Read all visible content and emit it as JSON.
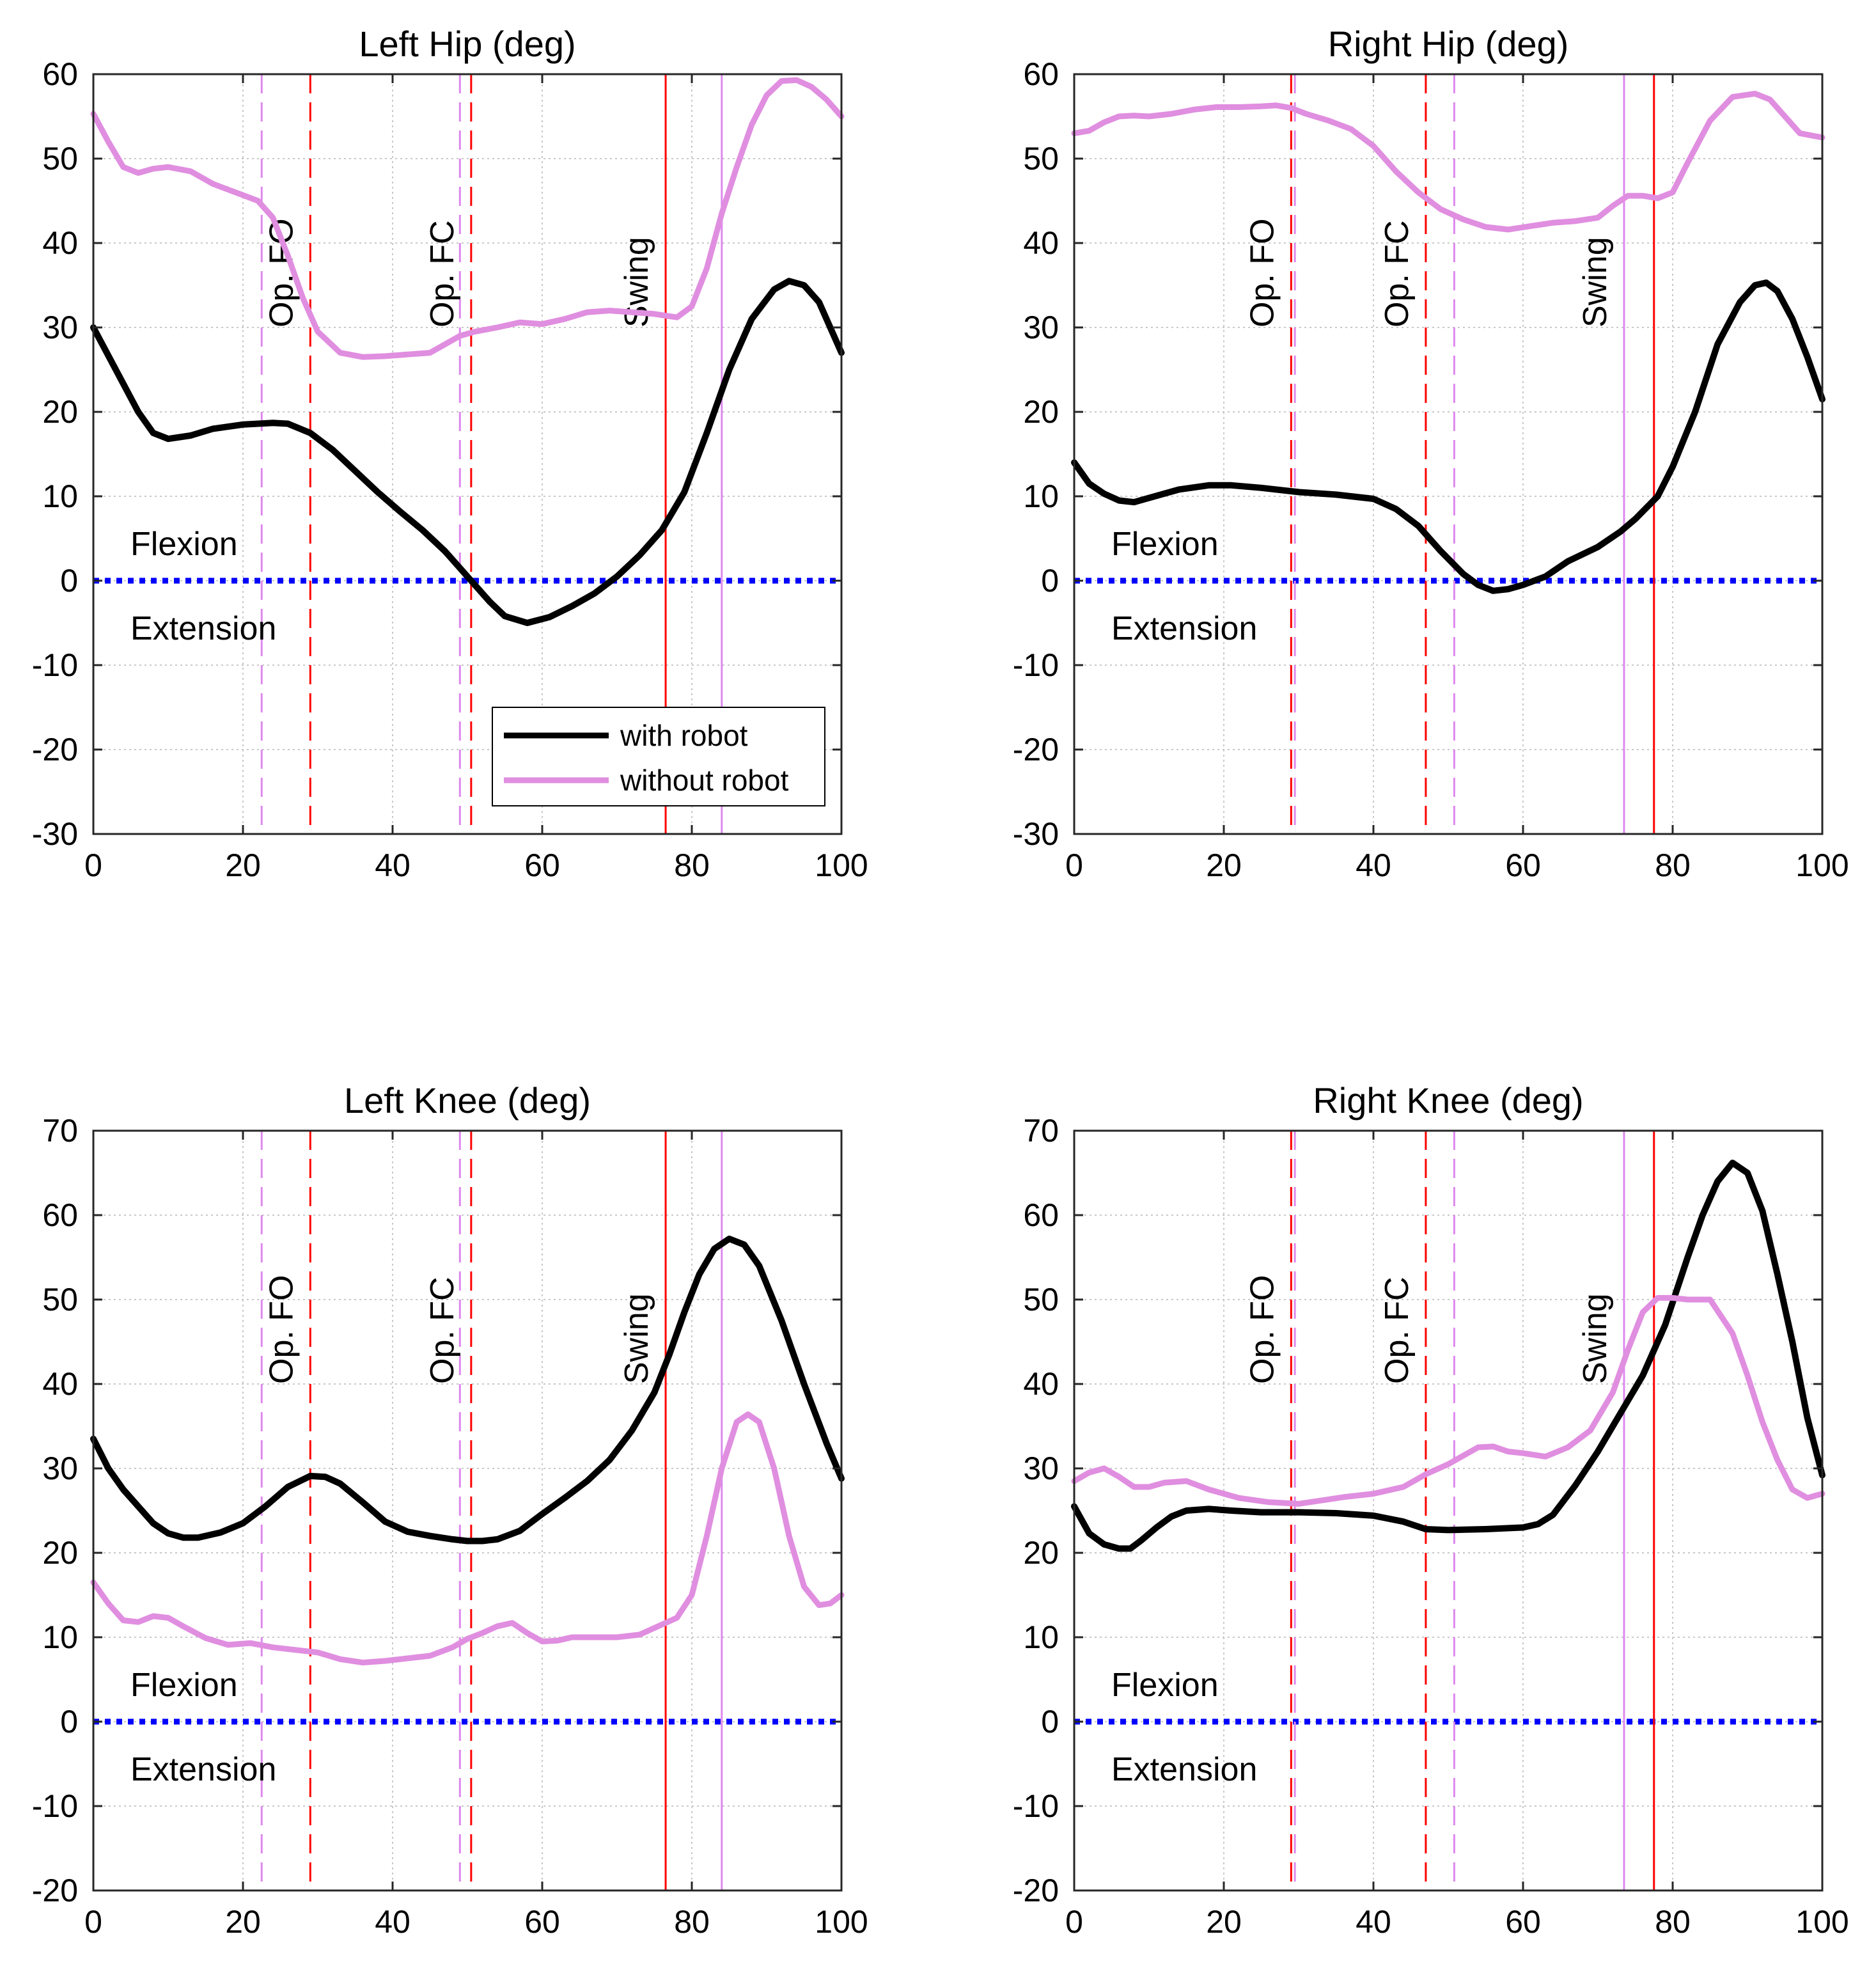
{
  "colors": {
    "with_robot": "#000000",
    "without_robot": "#e08ee0",
    "robot_event": "#ff0000",
    "no_robot_event": "#dd88ee",
    "zero_line": "#0000ff",
    "grid": "#c8c8c8"
  },
  "legend": {
    "with_robot": "with robot",
    "without_robot": "without robot"
  },
  "chart_data": [
    {
      "type": "line",
      "title": "Left Hip (deg)",
      "xlim": [
        0,
        100
      ],
      "ylim": [
        -30,
        60
      ],
      "xticks": [
        0,
        20,
        40,
        60,
        80,
        100
      ],
      "yticks": [
        -30,
        -20,
        -10,
        0,
        10,
        20,
        30,
        40,
        50,
        60
      ],
      "grid": true,
      "legend_location": "lower-right",
      "annotations": {
        "upper": "Flexion",
        "lower": "Extension"
      },
      "events": [
        {
          "label": "Op. FO",
          "x": 29,
          "style": "dashed",
          "series": "with robot",
          "labeled": true
        },
        {
          "label": "Op. FC",
          "x": 50.5,
          "style": "dashed",
          "series": "with robot",
          "labeled": true
        },
        {
          "label": "Swing",
          "x": 76.5,
          "style": "solid",
          "series": "with robot",
          "labeled": true
        },
        {
          "label": "",
          "x": 22.5,
          "style": "dashed",
          "series": "without robot",
          "labeled": false
        },
        {
          "label": "",
          "x": 49,
          "style": "dashed",
          "series": "without robot",
          "labeled": false
        },
        {
          "label": "",
          "x": 84,
          "style": "solid",
          "series": "without robot",
          "labeled": false
        }
      ],
      "series": [
        {
          "name": "with robot",
          "x": [
            0,
            3,
            6,
            8,
            10,
            13,
            16,
            20,
            24,
            26,
            29,
            32,
            35,
            38,
            41,
            44,
            47,
            50,
            53,
            55,
            58,
            61,
            64,
            67,
            70,
            73,
            76,
            79,
            82,
            85,
            88,
            91,
            93,
            95,
            97,
            100
          ],
          "y": [
            30,
            25,
            20,
            17.5,
            16.8,
            17.2,
            18,
            18.5,
            18.7,
            18.6,
            17.5,
            15.5,
            13,
            10.5,
            8.2,
            6,
            3.5,
            0.5,
            -2.5,
            -4.2,
            -5,
            -4.3,
            -3,
            -1.5,
            0.5,
            3,
            6,
            10.5,
            17.5,
            25,
            31,
            34.5,
            35.5,
            35,
            33,
            27
          ]
        },
        {
          "name": "without robot",
          "x": [
            0,
            2,
            4,
            6,
            8,
            10,
            13,
            16,
            19,
            22,
            24,
            26,
            28,
            30,
            33,
            36,
            39,
            42,
            45,
            47,
            49,
            51,
            54,
            57,
            60,
            63,
            66,
            69,
            72,
            75,
            78,
            80,
            82,
            84,
            86,
            88,
            90,
            92,
            94,
            96,
            98,
            100
          ],
          "y": [
            55.3,
            52,
            49,
            48.3,
            48.8,
            49,
            48.5,
            47,
            46,
            45,
            43,
            38.5,
            33.5,
            29.5,
            27,
            26.5,
            26.6,
            26.8,
            27,
            28,
            29,
            29.5,
            30,
            30.6,
            30.4,
            31,
            31.8,
            32,
            31.8,
            31.6,
            31.2,
            32.5,
            37,
            43.5,
            49,
            54,
            57.5,
            59.2,
            59.3,
            58.5,
            57,
            55
          ]
        }
      ]
    },
    {
      "type": "line",
      "title": "Right Hip (deg)",
      "xlim": [
        0,
        100
      ],
      "ylim": [
        -30,
        60
      ],
      "xticks": [
        0,
        20,
        40,
        60,
        80,
        100
      ],
      "yticks": [
        -30,
        -20,
        -10,
        0,
        10,
        20,
        30,
        40,
        50,
        60
      ],
      "grid": true,
      "annotations": {
        "upper": "Flexion",
        "lower": "Extension"
      },
      "events": [
        {
          "label": "Op. FO",
          "x": 29,
          "style": "dashed",
          "series": "with robot",
          "labeled": true
        },
        {
          "label": "Op. FC",
          "x": 47,
          "style": "dashed",
          "series": "with robot",
          "labeled": true
        },
        {
          "label": "Swing",
          "x": 77.5,
          "style": "solid",
          "series": "with robot",
          "labeled": false
        },
        {
          "label": "",
          "x": 29.5,
          "style": "dashed",
          "series": "without robot",
          "labeled": false
        },
        {
          "label": "",
          "x": 50.8,
          "style": "dashed",
          "series": "without robot",
          "labeled": false
        },
        {
          "label": "Swing",
          "x": 73.5,
          "style": "solid",
          "series": "without robot",
          "labeled": true
        }
      ],
      "series": [
        {
          "name": "with robot",
          "x": [
            0,
            2,
            4,
            6,
            8,
            10,
            14,
            18,
            21,
            25,
            30,
            35,
            40,
            43,
            46,
            49,
            52,
            54,
            56,
            58,
            60,
            63,
            66,
            70,
            73,
            75,
            78,
            80,
            83,
            86,
            89,
            91,
            92.5,
            94,
            96,
            98,
            100
          ],
          "y": [
            14,
            11.5,
            10.3,
            9.5,
            9.3,
            9.8,
            10.8,
            11.3,
            11.3,
            11,
            10.5,
            10.2,
            9.7,
            8.5,
            6.5,
            3.5,
            0.8,
            -0.5,
            -1.2,
            -1,
            -0.5,
            0.5,
            2.3,
            4,
            5.8,
            7.3,
            10,
            13.5,
            20,
            28,
            33,
            35,
            35.3,
            34.3,
            31,
            26.5,
            21.5
          ]
        },
        {
          "name": "without robot",
          "x": [
            0,
            2,
            4,
            6,
            8,
            10,
            13,
            16,
            19,
            22,
            25,
            27,
            29,
            31,
            34,
            37,
            40,
            43,
            46,
            49,
            52,
            55,
            58,
            61,
            64,
            67,
            70,
            72,
            74,
            76,
            78,
            80,
            82,
            85,
            88,
            91,
            93,
            95,
            97,
            100
          ],
          "y": [
            53,
            53.3,
            54.3,
            55,
            55.1,
            55,
            55.3,
            55.8,
            56.1,
            56.1,
            56.2,
            56.3,
            56,
            55.3,
            54.5,
            53.5,
            51.5,
            48.5,
            46,
            44,
            42.8,
            41.9,
            41.6,
            42,
            42.4,
            42.6,
            43,
            44.4,
            45.6,
            45.6,
            45.3,
            46,
            49.5,
            54.5,
            57.3,
            57.7,
            57,
            55,
            53,
            52.5
          ]
        }
      ]
    },
    {
      "type": "line",
      "title": "Left Knee (deg)",
      "xlim": [
        0,
        100
      ],
      "ylim": [
        -20,
        70
      ],
      "xticks": [
        0,
        20,
        40,
        60,
        80,
        100
      ],
      "yticks": [
        -20,
        -10,
        0,
        10,
        20,
        30,
        40,
        50,
        60,
        70
      ],
      "grid": true,
      "annotations": {
        "upper": "Flexion",
        "lower": "Extension"
      },
      "events": [
        {
          "label": "Op. FO",
          "x": 29,
          "style": "dashed",
          "series": "with robot",
          "labeled": true
        },
        {
          "label": "Op. FC",
          "x": 50.5,
          "style": "dashed",
          "series": "with robot",
          "labeled": true
        },
        {
          "label": "Swing",
          "x": 76.5,
          "style": "solid",
          "series": "with robot",
          "labeled": true
        },
        {
          "label": "",
          "x": 22.5,
          "style": "dashed",
          "series": "without robot",
          "labeled": false
        },
        {
          "label": "",
          "x": 49,
          "style": "dashed",
          "series": "without robot",
          "labeled": false
        },
        {
          "label": "",
          "x": 84,
          "style": "solid",
          "series": "without robot",
          "labeled": false
        }
      ],
      "series": [
        {
          "name": "with robot",
          "x": [
            0,
            2,
            4,
            6,
            8,
            10,
            12,
            14,
            17,
            20,
            23,
            26,
            29,
            31,
            33,
            36,
            39,
            42,
            45,
            48,
            50,
            52,
            54,
            57,
            60,
            63,
            66,
            69,
            72,
            75,
            77,
            79,
            81,
            83,
            85,
            87,
            89,
            92,
            95,
            98,
            100
          ],
          "y": [
            33.5,
            30,
            27.5,
            25.5,
            23.5,
            22.3,
            21.8,
            21.8,
            22.4,
            23.5,
            25.5,
            27.8,
            29.1,
            29,
            28.2,
            26,
            23.7,
            22.5,
            22,
            21.6,
            21.4,
            21.4,
            21.6,
            22.6,
            24.6,
            26.5,
            28.5,
            31,
            34.5,
            39,
            43.5,
            48.5,
            53,
            56,
            57.2,
            56.5,
            54,
            47.5,
            40,
            33,
            28.8
          ]
        },
        {
          "name": "without robot",
          "x": [
            0,
            2,
            4,
            6,
            8,
            10,
            12,
            15,
            18,
            21,
            24,
            27,
            30,
            33,
            36,
            39,
            42,
            45,
            48,
            50,
            52,
            54,
            56,
            58,
            60,
            62,
            64,
            67,
            70,
            73,
            76,
            78,
            80,
            82,
            84,
            86,
            87.5,
            89,
            91,
            93,
            95,
            97,
            98.5,
            100
          ],
          "y": [
            16.5,
            14,
            12,
            11.8,
            12.5,
            12.3,
            11.3,
            9.9,
            9.1,
            9.3,
            8.8,
            8.5,
            8.2,
            7.4,
            7,
            7.2,
            7.5,
            7.8,
            8.8,
            9.8,
            10.5,
            11.3,
            11.7,
            10.5,
            9.5,
            9.6,
            10,
            10,
            10,
            10.3,
            11.5,
            12.3,
            15,
            22,
            30,
            35.5,
            36.4,
            35.5,
            30,
            22,
            16,
            13.8,
            14,
            15
          ]
        }
      ]
    },
    {
      "type": "line",
      "title": "Right Knee (deg)",
      "xlim": [
        0,
        100
      ],
      "ylim": [
        -20,
        70
      ],
      "xticks": [
        0,
        20,
        40,
        60,
        80,
        100
      ],
      "yticks": [
        -20,
        -10,
        0,
        10,
        20,
        30,
        40,
        50,
        60,
        70
      ],
      "grid": true,
      "annotations": {
        "upper": "Flexion",
        "lower": "Extension"
      },
      "events": [
        {
          "label": "Op. FO",
          "x": 29,
          "style": "dashed",
          "series": "with robot",
          "labeled": true
        },
        {
          "label": "Op. FC",
          "x": 47,
          "style": "dashed",
          "series": "with robot",
          "labeled": true
        },
        {
          "label": "Swing",
          "x": 77.5,
          "style": "solid",
          "series": "with robot",
          "labeled": false
        },
        {
          "label": "",
          "x": 29.5,
          "style": "dashed",
          "series": "without robot",
          "labeled": false
        },
        {
          "label": "",
          "x": 50.8,
          "style": "dashed",
          "series": "without robot",
          "labeled": false
        },
        {
          "label": "Swing",
          "x": 73.5,
          "style": "solid",
          "series": "without robot",
          "labeled": true
        }
      ],
      "series": [
        {
          "name": "with robot",
          "x": [
            0,
            2,
            4,
            6,
            7.5,
            9,
            11,
            13,
            15,
            18,
            21,
            25,
            30,
            35,
            40,
            44,
            47,
            50,
            55,
            60,
            62,
            64,
            67,
            70,
            73,
            76,
            79,
            82,
            84,
            86,
            88,
            90,
            92,
            94,
            96,
            98,
            100
          ],
          "y": [
            25.5,
            22.3,
            21,
            20.5,
            20.5,
            21.5,
            23,
            24.3,
            25,
            25.2,
            25,
            24.8,
            24.8,
            24.7,
            24.4,
            23.7,
            22.8,
            22.7,
            22.8,
            23,
            23.4,
            24.5,
            28,
            32,
            36.5,
            41,
            47,
            55,
            60,
            64,
            66.2,
            65,
            60.5,
            53,
            45,
            36,
            29.2
          ]
        },
        {
          "name": "without robot",
          "x": [
            0,
            2,
            4,
            6,
            8,
            10,
            12,
            15,
            18,
            22,
            26,
            30,
            33,
            36,
            40,
            44,
            47,
            50,
            52,
            54,
            56,
            58,
            60,
            63,
            66,
            69,
            72,
            74,
            76,
            78,
            80,
            82,
            85,
            88,
            90,
            92,
            94,
            96,
            98,
            100
          ],
          "y": [
            28.5,
            29.5,
            30,
            29,
            27.8,
            27.8,
            28.3,
            28.5,
            27.5,
            26.5,
            26,
            25.8,
            26.2,
            26.6,
            27,
            27.8,
            29.3,
            30.5,
            31.5,
            32.5,
            32.6,
            32,
            31.8,
            31.4,
            32.5,
            34.5,
            39,
            44,
            48.5,
            50.2,
            50.2,
            50,
            50,
            46,
            41,
            35.5,
            31,
            27.5,
            26.5,
            27
          ]
        }
      ]
    }
  ]
}
